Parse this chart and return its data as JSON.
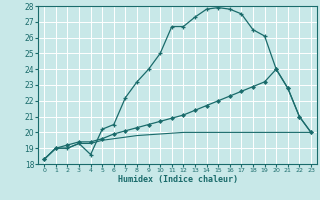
{
  "xlabel": "Humidex (Indice chaleur)",
  "xlim": [
    -0.5,
    23.5
  ],
  "ylim": [
    18,
    28
  ],
  "xticks": [
    0,
    1,
    2,
    3,
    4,
    5,
    6,
    7,
    8,
    9,
    10,
    11,
    12,
    13,
    14,
    15,
    16,
    17,
    18,
    19,
    20,
    21,
    22,
    23
  ],
  "yticks": [
    18,
    19,
    20,
    21,
    22,
    23,
    24,
    25,
    26,
    27,
    28
  ],
  "bg_color": "#c8e8e8",
  "line_color": "#1a6b6b",
  "grid_color": "#ffffff",
  "line1_x": [
    0,
    1,
    2,
    3,
    4,
    5,
    6,
    7,
    8,
    9,
    10,
    11,
    12,
    13,
    14,
    15,
    16,
    17,
    18,
    19,
    20,
    21,
    22,
    23
  ],
  "line1_y": [
    18.3,
    19.0,
    19.0,
    19.3,
    18.6,
    20.2,
    20.5,
    22.2,
    23.2,
    24.0,
    25.0,
    26.7,
    26.7,
    27.3,
    27.8,
    27.9,
    27.8,
    27.5,
    26.5,
    26.1,
    24.0,
    22.8,
    21.0,
    20.0
  ],
  "line2_x": [
    0,
    1,
    2,
    3,
    4,
    5,
    6,
    7,
    8,
    9,
    10,
    11,
    12,
    13,
    14,
    15,
    16,
    17,
    18,
    19,
    20,
    21,
    22,
    23
  ],
  "line2_y": [
    18.3,
    19.0,
    19.2,
    19.4,
    19.4,
    19.6,
    19.9,
    20.1,
    20.3,
    20.5,
    20.7,
    20.9,
    21.1,
    21.4,
    21.7,
    22.0,
    22.3,
    22.6,
    22.9,
    23.2,
    24.0,
    22.8,
    21.0,
    20.0
  ],
  "line3_x": [
    0,
    1,
    2,
    3,
    4,
    5,
    6,
    7,
    8,
    9,
    10,
    11,
    12,
    13,
    14,
    15,
    16,
    17,
    18,
    19,
    20,
    21,
    22,
    23
  ],
  "line3_y": [
    18.3,
    19.0,
    19.0,
    19.3,
    19.3,
    19.5,
    19.6,
    19.7,
    19.8,
    19.85,
    19.9,
    19.95,
    20.0,
    20.0,
    20.0,
    20.0,
    20.0,
    20.0,
    20.0,
    20.0,
    20.0,
    20.0,
    20.0,
    20.0
  ]
}
